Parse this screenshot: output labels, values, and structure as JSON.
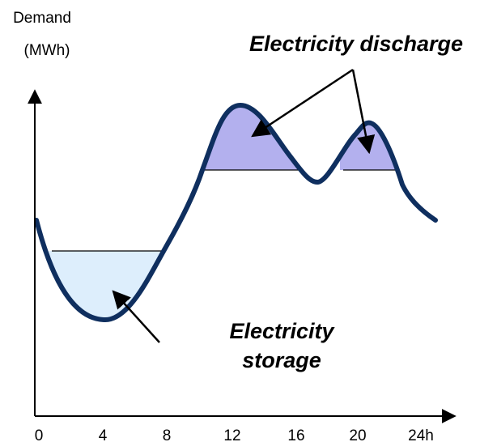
{
  "axis": {
    "y_label_line1": "Demand",
    "y_label_line2": "(MWh)",
    "x_ticks": [
      "0",
      "4",
      "8",
      "12",
      "16",
      "20",
      "24h"
    ]
  },
  "annotations": {
    "discharge": "Electricity discharge",
    "storage_line1": "Electricity",
    "storage_line2": "storage"
  }
}
